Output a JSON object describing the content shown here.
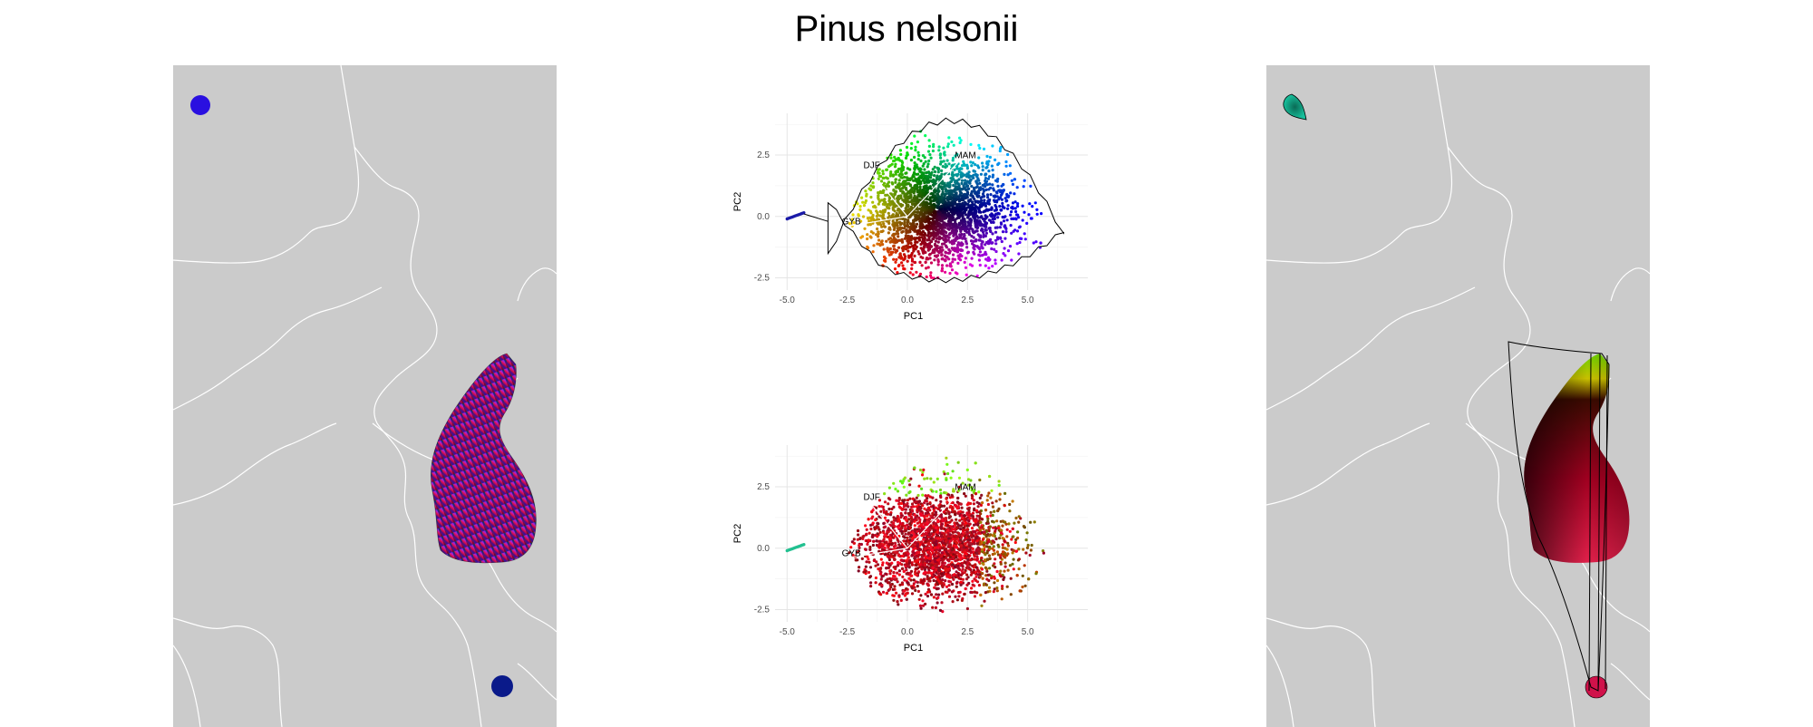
{
  "title": "Pinus nelsonii",
  "chart_data": [
    {
      "type": "scatter",
      "panel": "pca-top",
      "xlabel": "PC1",
      "ylabel": "PC2",
      "xticks": [
        -5.0,
        -2.5,
        0.0,
        2.5,
        5.0
      ],
      "yticks": [
        -2.5,
        0.0,
        2.5
      ],
      "xtick_labels": [
        "-5.0",
        "-2.5",
        "0.0",
        "2.5",
        "5.0"
      ],
      "ytick_labels": [
        "-2.5",
        "0.0",
        "2.5"
      ],
      "xlim": [
        -5.5,
        7.5
      ],
      "ylim": [
        -3.0,
        4.2
      ],
      "grid": true,
      "color_mode": "rgb-environment",
      "outlier_cluster": {
        "x": [
          -5.0,
          -4.3
        ],
        "y": [
          -0.1,
          0.15
        ]
      },
      "vectors": [
        {
          "label": "DJF",
          "end": [
            -1.6,
            1.9
          ]
        },
        {
          "label": "MAM",
          "end": [
            2.2,
            2.3
          ]
        },
        {
          "label": "GYB",
          "end": [
            -2.5,
            -0.4
          ]
        }
      ],
      "hull": true
    },
    {
      "type": "scatter",
      "panel": "pca-bottom",
      "xlabel": "PC1",
      "ylabel": "PC2",
      "xticks": [
        -5.0,
        -2.5,
        0.0,
        2.5,
        5.0
      ],
      "yticks": [
        -2.5,
        0.0,
        2.5
      ],
      "xtick_labels": [
        "-5.0",
        "-2.5",
        "0.0",
        "2.5",
        "5.0"
      ],
      "ytick_labels": [
        "-2.5",
        "0.0",
        "2.5"
      ],
      "xlim": [
        -5.5,
        7.5
      ],
      "ylim": [
        -3.0,
        4.2
      ],
      "grid": true,
      "color_mode": "red-green-cluster",
      "outlier_cluster": {
        "x": [
          -5.0,
          -4.3
        ],
        "y": [
          -0.1,
          0.15
        ]
      },
      "vectors": [
        {
          "label": "DJF",
          "end": [
            -1.6,
            1.9
          ]
        },
        {
          "label": "MAM",
          "end": [
            2.2,
            2.3
          ]
        },
        {
          "label": "GYB",
          "end": [
            -2.5,
            -0.4
          ]
        }
      ],
      "hull": false
    }
  ],
  "colors": {
    "map_bg": "#cbcbcb",
    "border": "#ffffff",
    "left_blob_small": "#2a10e0",
    "left_blob_bottom": "#0a1a8a",
    "right_blob_small": "#13a083",
    "right_blob_bottom": "#d0124a"
  }
}
